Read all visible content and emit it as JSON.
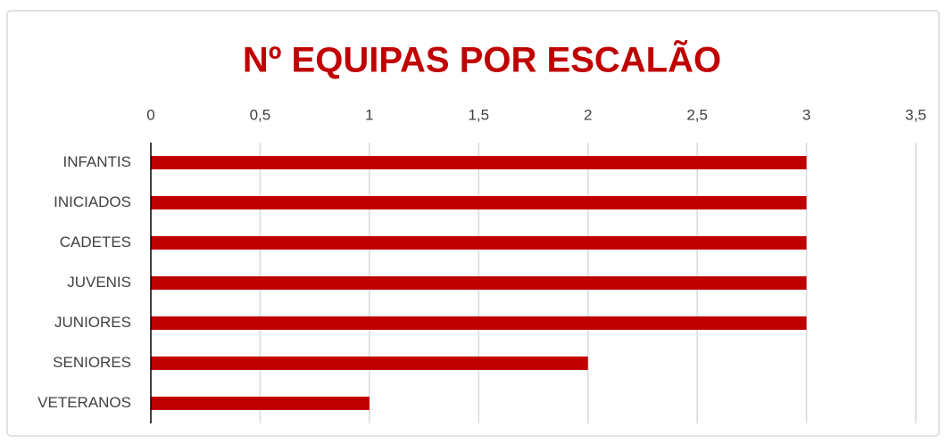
{
  "chart_data": {
    "type": "bar",
    "orientation": "horizontal",
    "title": "Nº EQUIPAS POR ESCALÃO",
    "categories": [
      "INFANTIS",
      "INICIADOS",
      "CADETES",
      "JUVENIS",
      "JUNIORES",
      "SENIORES",
      "VETERANOS"
    ],
    "values": [
      3,
      3,
      3,
      3,
      3,
      2,
      1
    ],
    "color": "#c00000",
    "xlim": [
      0,
      3.5
    ],
    "xticks": [
      0,
      {
        "value": 0.5,
        "label": "0,5"
      },
      1,
      {
        "value": 1.5,
        "label": "1,5"
      },
      2,
      {
        "value": 2.5,
        "label": "2,5"
      },
      3,
      {
        "value": 3.5,
        "label": "3,5"
      }
    ],
    "grid": true
  }
}
